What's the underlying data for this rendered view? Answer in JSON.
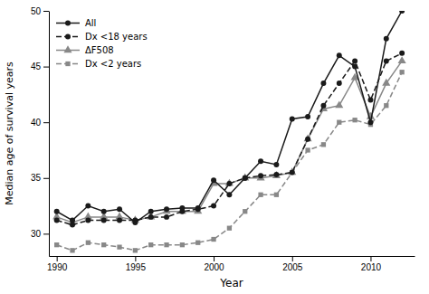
{
  "chart_data": {
    "type": "line",
    "x": [
      1990,
      1991,
      1992,
      1993,
      1994,
      1995,
      1996,
      1997,
      1998,
      1999,
      2000,
      2001,
      2002,
      2003,
      2004,
      2005,
      2006,
      2007,
      2008,
      2009,
      2010,
      2011,
      2012
    ],
    "xlim": [
      1989.5,
      2012.8
    ],
    "xticks": [
      1990,
      1995,
      2000,
      2005,
      2010
    ],
    "ylim": [
      28,
      50
    ],
    "yticks": [
      30,
      35,
      40,
      45,
      50
    ],
    "xlabel": "Year",
    "ylabel": "Median age of survival years",
    "legend": "upper left",
    "grid": false,
    "series": [
      {
        "name": "All",
        "color": "#1a1a1a",
        "line_style": "solid",
        "marker": "circle",
        "values": [
          32.0,
          31.2,
          32.5,
          32.0,
          32.2,
          31.0,
          32.0,
          32.2,
          32.3,
          32.3,
          34.8,
          33.5,
          35.0,
          36.5,
          36.2,
          40.3,
          40.5,
          43.5,
          46.0,
          45.0,
          40.0,
          47.5,
          50.0
        ]
      },
      {
        "name": "Dx <18 years",
        "color": "#1a1a1a",
        "line_style": "dashed",
        "marker": "circle",
        "values": [
          31.2,
          30.8,
          31.2,
          31.2,
          31.2,
          31.2,
          31.5,
          31.5,
          32.0,
          32.2,
          32.5,
          34.5,
          35.0,
          35.2,
          35.3,
          35.5,
          38.5,
          41.5,
          43.5,
          45.5,
          42.0,
          45.5,
          46.2
        ]
      },
      {
        "name": "ΔF508",
        "color": "#888888",
        "line_style": "solid",
        "marker": "triangle",
        "values": [
          31.5,
          31.0,
          31.5,
          31.5,
          31.5,
          31.2,
          31.5,
          32.0,
          32.0,
          32.0,
          34.5,
          34.5,
          35.0,
          35.0,
          35.2,
          35.5,
          38.5,
          41.2,
          41.5,
          44.0,
          40.5,
          43.5,
          45.5
        ]
      },
      {
        "name": "Dx <2 years",
        "color": "#888888",
        "line_style": "dashed",
        "marker": "square",
        "values": [
          29.0,
          28.5,
          29.2,
          29.0,
          28.8,
          28.5,
          29.0,
          29.0,
          29.0,
          29.2,
          29.5,
          30.5,
          32.0,
          33.5,
          33.5,
          35.5,
          37.5,
          38.0,
          40.0,
          40.2,
          39.8,
          41.5,
          44.5
        ]
      }
    ]
  }
}
